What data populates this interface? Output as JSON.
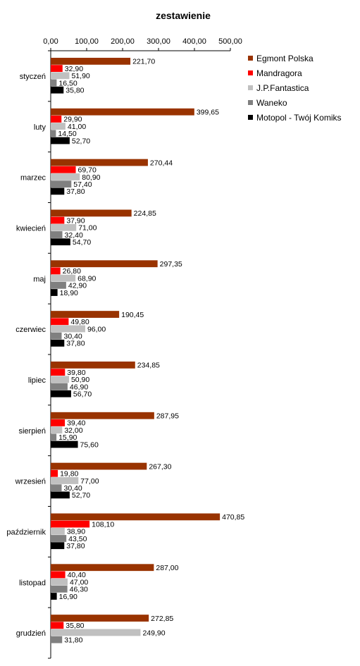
{
  "chart_data": {
    "type": "bar",
    "orientation": "horizontal",
    "title": "zestawienie",
    "xlabel": "",
    "ylabel": "",
    "xlim": [
      0,
      500
    ],
    "x_ticks": [
      "0,00",
      "100,00",
      "200,00",
      "300,00",
      "400,00",
      "500,00"
    ],
    "grid": false,
    "legend_position": "top-right",
    "categories": [
      "styczeń",
      "luty",
      "marzec",
      "kwiecień",
      "maj",
      "czerwiec",
      "lipiec",
      "sierpień",
      "wrzesień",
      "październik",
      "listopad",
      "grudzień"
    ],
    "series": [
      {
        "name": "Egmont Polska",
        "color": "#993300",
        "values": [
          221.7,
          399.65,
          270.44,
          224.85,
          297.35,
          190.45,
          234.85,
          287.95,
          267.3,
          470.85,
          287.0,
          272.85
        ],
        "labels": [
          "221,70",
          "399,65",
          "270,44",
          "224,85",
          "297,35",
          "190,45",
          "234,85",
          "287,95",
          "267,30",
          "470,85",
          "287,00",
          "272,85"
        ]
      },
      {
        "name": "Mandragora",
        "color": "#ff0000",
        "values": [
          32.9,
          29.9,
          69.7,
          37.9,
          26.8,
          49.8,
          39.8,
          39.4,
          19.8,
          108.1,
          40.4,
          35.8
        ],
        "labels": [
          "32,90",
          "29,90",
          "69,70",
          "37,90",
          "26,80",
          "49,80",
          "39,80",
          "39,40",
          "19,80",
          "108,10",
          "40,40",
          "35,80"
        ]
      },
      {
        "name": "J.P.Fantastica",
        "color": "#c0c0c0",
        "values": [
          51.9,
          41.0,
          80.9,
          71.0,
          68.9,
          96.0,
          50.9,
          32.0,
          77.0,
          38.9,
          47.0,
          249.9
        ],
        "labels": [
          "51,90",
          "41,00",
          "80,90",
          "71,00",
          "68,90",
          "96,00",
          "50,90",
          "32,00",
          "77,00",
          "38,90",
          "47,00",
          "249,90"
        ]
      },
      {
        "name": "Waneko",
        "color": "#808080",
        "values": [
          16.5,
          14.5,
          57.4,
          32.4,
          42.9,
          30.4,
          46.9,
          15.9,
          30.4,
          43.5,
          46.3,
          31.8
        ],
        "labels": [
          "16,50",
          "14,50",
          "57,40",
          "32,40",
          "42,90",
          "30,40",
          "46,90",
          "15,90",
          "30,40",
          "43,50",
          "46,30",
          "31,80"
        ]
      },
      {
        "name": "Motopol - Twój Komiks",
        "color": "#000000",
        "values": [
          35.8,
          52.7,
          37.8,
          54.7,
          18.9,
          37.8,
          56.7,
          75.6,
          52.7,
          37.8,
          16.9,
          null
        ],
        "labels": [
          "35,80",
          "52,70",
          "37,80",
          "54,70",
          "18,90",
          "37,80",
          "56,70",
          "75,60",
          "52,70",
          "37,80",
          "16,90",
          null
        ]
      }
    ]
  }
}
